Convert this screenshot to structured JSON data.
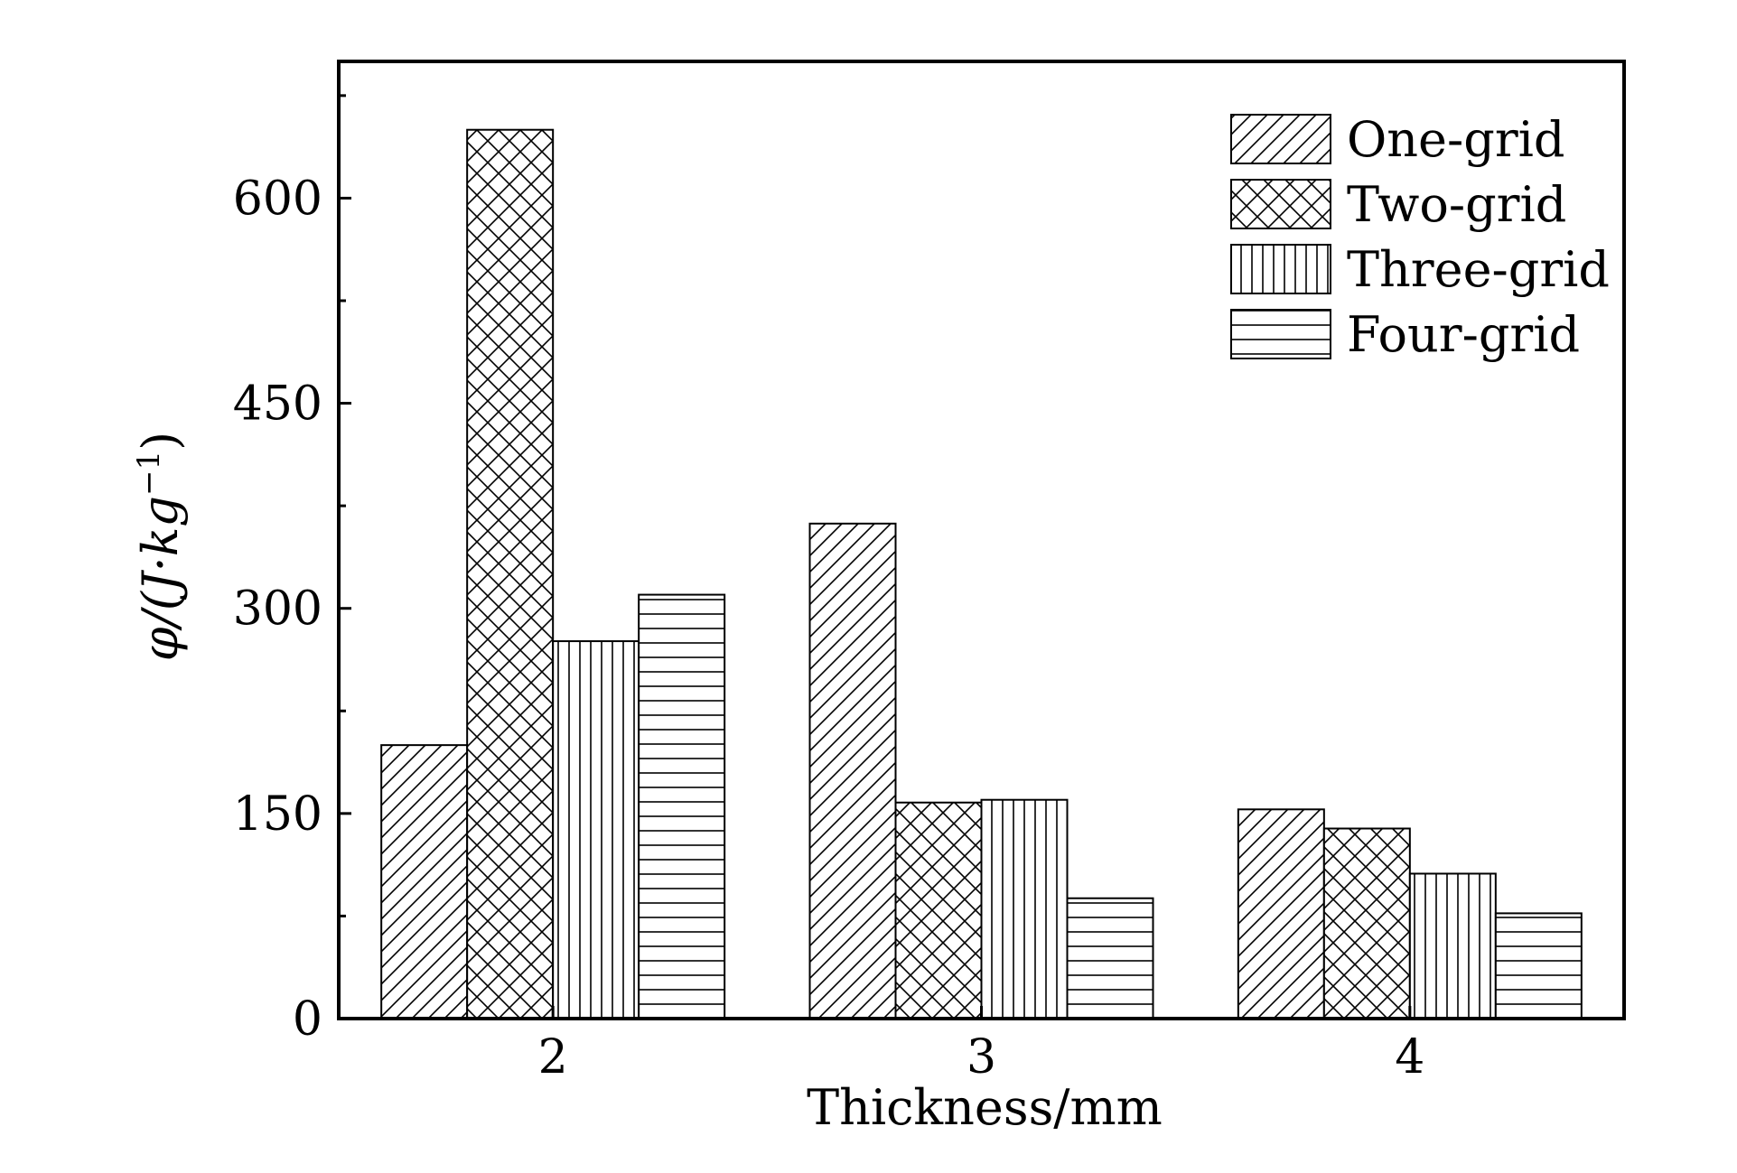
{
  "chart_data": {
    "type": "bar",
    "categories": [
      "2",
      "3",
      "4"
    ],
    "xlabel": "Thickness/mm",
    "ylabel": "φ/(J·kg⁻¹)",
    "ylabel_parts": {
      "main": "φ/(J·kg",
      "sup": "−1",
      "close": ")"
    },
    "ylim": [
      0,
      700
    ],
    "yticks": [
      0,
      150,
      300,
      450,
      600
    ],
    "y_minor_step": 75,
    "legend_position": "top-right",
    "grid": false,
    "series": [
      {
        "name": "One-grid",
        "pattern": "diagonal",
        "values": [
          200,
          362,
          153
        ]
      },
      {
        "name": "Two-grid",
        "pattern": "crosshatch",
        "values": [
          650,
          158,
          139
        ]
      },
      {
        "name": "Three-grid",
        "pattern": "vertical",
        "values": [
          276,
          160,
          106
        ]
      },
      {
        "name": "Four-grid",
        "pattern": "horizontal",
        "values": [
          310,
          88,
          77
        ]
      }
    ],
    "colors": {
      "bar_fill": "#ffffff",
      "stroke": "#000000"
    }
  }
}
